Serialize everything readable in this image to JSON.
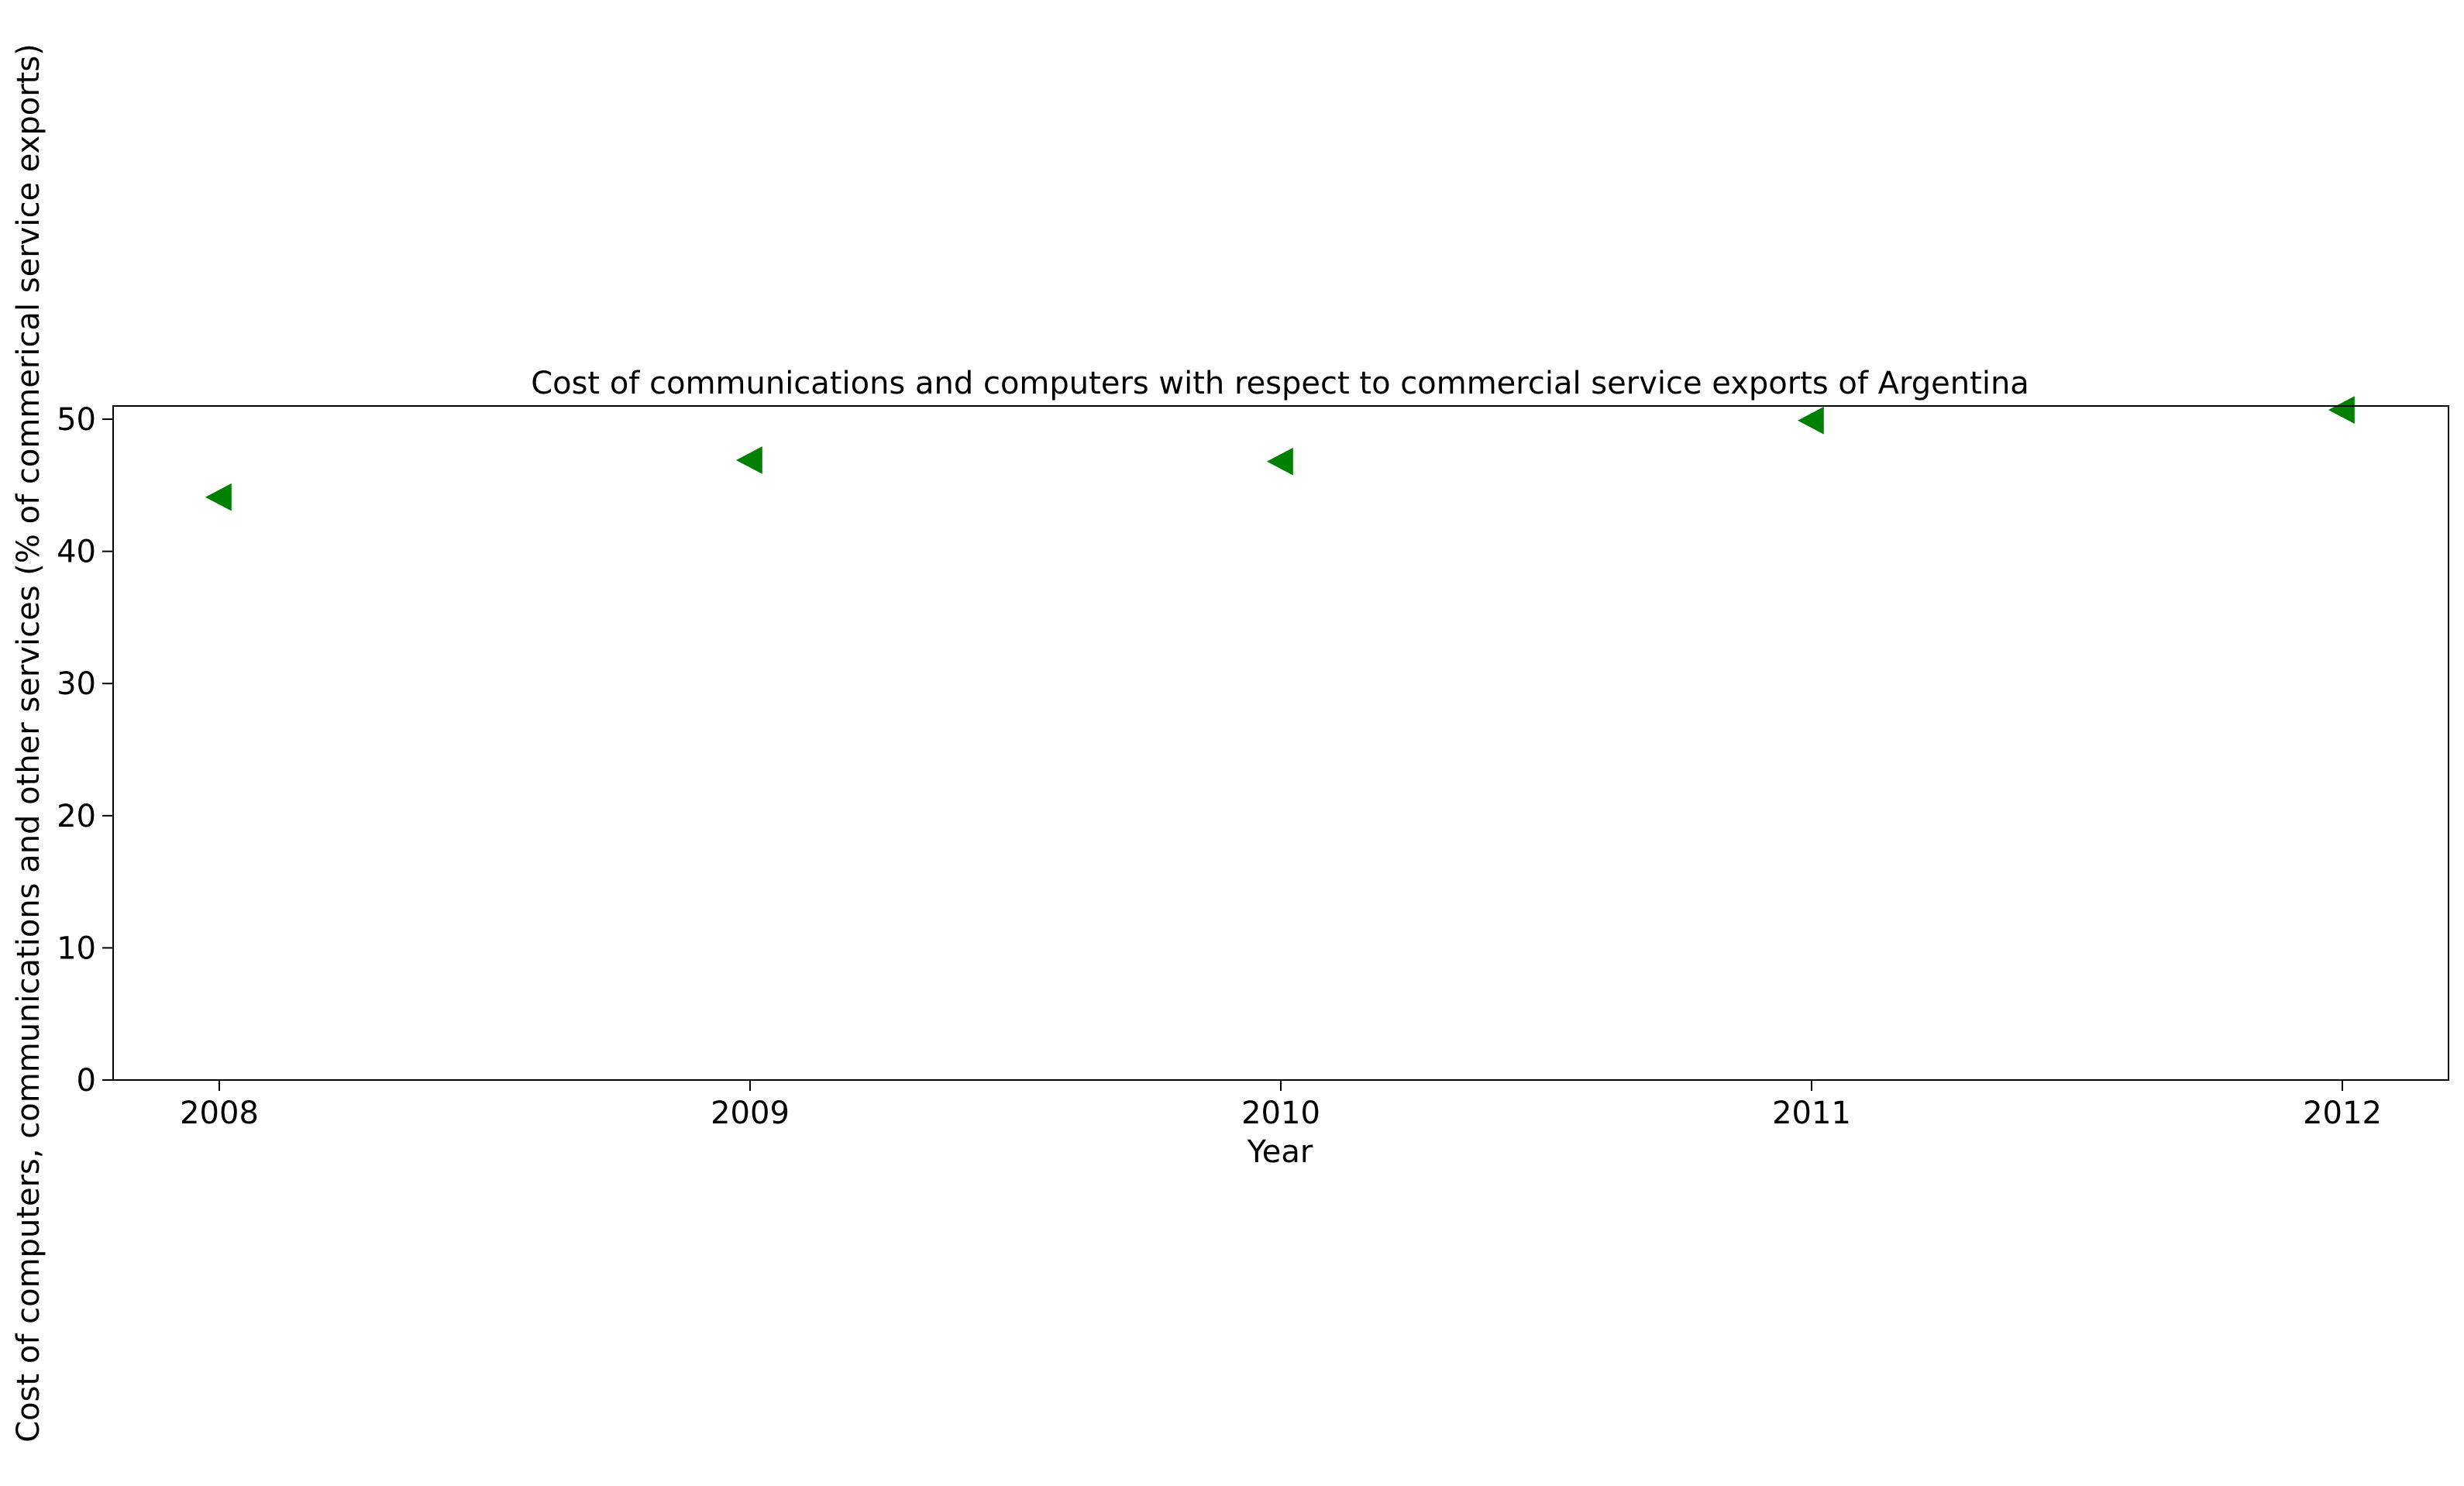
{
  "chart_data": {
    "type": "scatter",
    "title": "Cost of communications and computers with respect to commercial service exports of Argentina",
    "xlabel": "Year",
    "ylabel": "Cost of computers, communications and other services (% of commerical service exports)",
    "x": [
      2008,
      2009,
      2010,
      2011,
      2012
    ],
    "x_tick_labels": [
      "2008",
      "2009",
      "2010",
      "2011",
      "2012"
    ],
    "y_ticks": [
      0,
      10,
      20,
      30,
      40,
      50
    ],
    "y_tick_labels": [
      "0",
      "10",
      "20",
      "30",
      "40",
      "50"
    ],
    "xlim": [
      2007.8,
      2012.2
    ],
    "ylim": [
      0,
      51
    ],
    "grid": false,
    "legend": "none",
    "series": [
      {
        "values": [
          44.1,
          46.9,
          46.8,
          49.9,
          50.7
        ],
        "marker": "triangle-left",
        "color": "#008000"
      }
    ]
  }
}
